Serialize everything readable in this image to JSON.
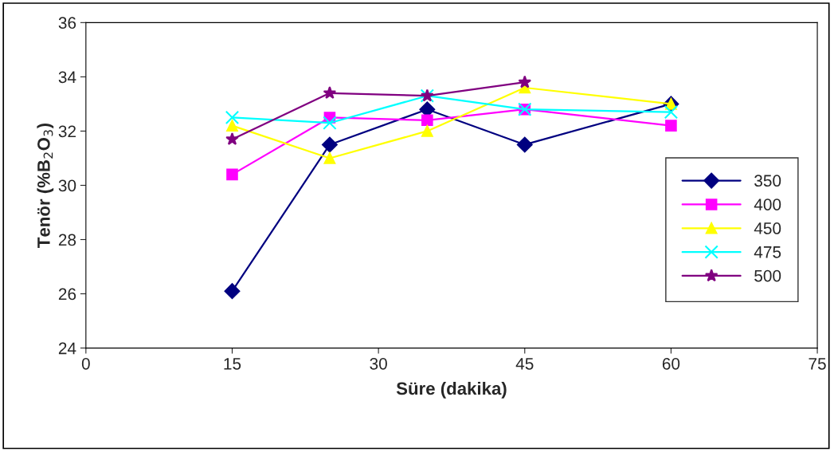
{
  "chart_data": {
    "type": "line",
    "xlabel": "Süre (dakika)",
    "ylabel": "Tenör (%B$_{2}$O$_{3}$)",
    "xlim": [
      0,
      75
    ],
    "xticks": [
      0,
      15,
      30,
      45,
      60,
      75
    ],
    "ylim": [
      24,
      36
    ],
    "yticks": [
      24,
      26,
      28,
      30,
      32,
      34,
      36
    ],
    "grid": false,
    "legend": "right",
    "series": [
      {
        "name": "350",
        "color": "#000080",
        "marker": "diamond",
        "x": [
          15,
          25,
          35,
          45,
          60
        ],
        "values": [
          26.1,
          31.5,
          32.8,
          31.5,
          33.0
        ]
      },
      {
        "name": "400",
        "color": "#ff00ff",
        "marker": "square",
        "x": [
          15,
          25,
          35,
          45,
          60
        ],
        "values": [
          30.4,
          32.5,
          32.4,
          32.8,
          32.2
        ]
      },
      {
        "name": "450",
        "color": "#ffff00",
        "marker": "triangle",
        "x": [
          15,
          25,
          35,
          45,
          60
        ],
        "values": [
          32.2,
          31.0,
          32.0,
          33.6,
          33.0
        ]
      },
      {
        "name": "475",
        "color": "#00ffff",
        "marker": "cross",
        "x": [
          15,
          25,
          35,
          45,
          60
        ],
        "values": [
          32.5,
          32.3,
          33.3,
          32.8,
          32.7
        ]
      },
      {
        "name": "500",
        "color": "#800080",
        "marker": "star",
        "x": [
          15,
          25,
          35,
          45
        ],
        "values": [
          31.7,
          33.4,
          33.3,
          33.8
        ]
      }
    ]
  }
}
